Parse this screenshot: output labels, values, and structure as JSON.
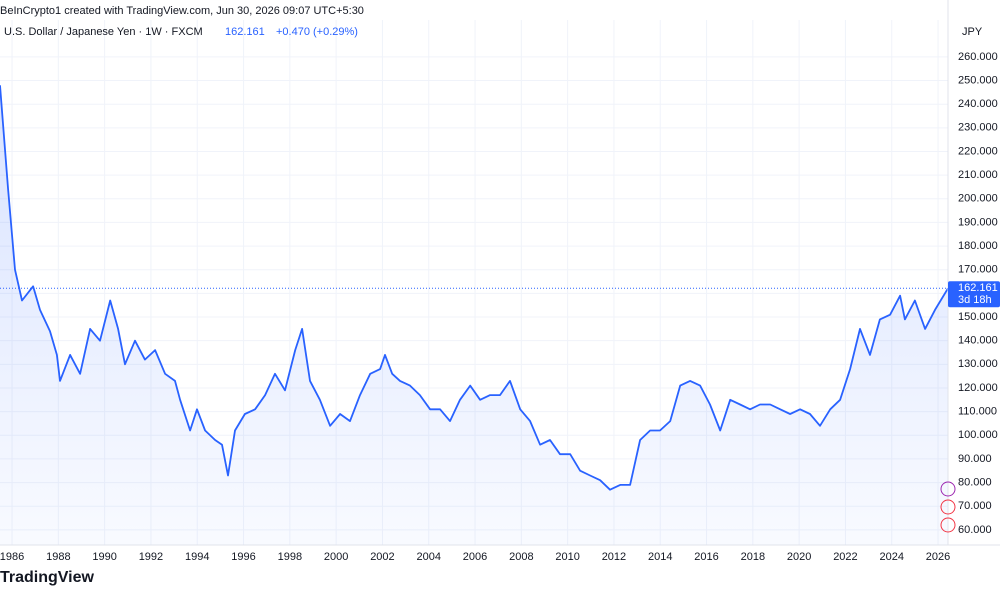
{
  "header": {
    "credit": "BeInCrypto1 created with TradingView.com, Jun 30, 2026 09:07 UTC+5:30",
    "symbol": "U.S. Dollar / Japanese Yen · 1W · FXCM",
    "change": "+0.470 (+0.29%)",
    "countdown": "3d 18h",
    "logo": "TradingView"
  },
  "chart_data": {
    "type": "line",
    "y_axis_label": "JPY",
    "color": "#2962ff",
    "grid": true,
    "xlim": [
      1985.48,
      2026.43
    ],
    "ylim": [
      53.6,
      275.6
    ],
    "xticks": [
      1986,
      1988,
      1990,
      1992,
      1994,
      1996,
      1998,
      2000,
      2002,
      2004,
      2006,
      2008,
      2010,
      2012,
      2014,
      2016,
      2018,
      2020,
      2022,
      2024,
      2026
    ],
    "yticks": [
      {
        "value": 60,
        "label": "60.000"
      },
      {
        "value": 70,
        "label": "70.000"
      },
      {
        "value": 80,
        "label": "80.000"
      },
      {
        "value": 90,
        "label": "90.000"
      },
      {
        "value": 100,
        "label": "100.000"
      },
      {
        "value": 110,
        "label": "110.000"
      },
      {
        "value": 120,
        "label": "120.000"
      },
      {
        "value": 130,
        "label": "130.000"
      },
      {
        "value": 140,
        "label": "140.000"
      },
      {
        "value": 150,
        "label": "150.000"
      },
      {
        "value": 160,
        "label": "160.000"
      },
      {
        "value": 170,
        "label": "170.000"
      },
      {
        "value": 180,
        "label": "180.000"
      },
      {
        "value": 190,
        "label": "190.000"
      },
      {
        "value": 200,
        "label": "200.000"
      },
      {
        "value": 210,
        "label": "210.000"
      },
      {
        "value": 220,
        "label": "220.000"
      },
      {
        "value": 230,
        "label": "230.000"
      },
      {
        "value": 240,
        "label": "240.000"
      },
      {
        "value": 250,
        "label": "250.000"
      },
      {
        "value": 260,
        "label": "260.000"
      }
    ],
    "x": [
      1985.48,
      1985.83,
      1986.13,
      1986.43,
      1986.91,
      1987.21,
      1987.64,
      1987.94,
      1988.07,
      1988.51,
      1988.94,
      1989.37,
      1989.8,
      1990.24,
      1990.58,
      1990.88,
      1991.31,
      1991.74,
      1992.18,
      1992.61,
      1993.04,
      1993.26,
      1993.69,
      1993.99,
      1994.34,
      1994.77,
      1995.07,
      1995.33,
      1995.63,
      1996.06,
      1996.5,
      1996.93,
      1997.36,
      1997.79,
      1998.23,
      1998.53,
      1998.87,
      1999.3,
      1999.74,
      2000.17,
      2000.6,
      2001.03,
      2001.47,
      2001.9,
      2002.11,
      2002.42,
      2002.76,
      2003.19,
      2003.62,
      2004.06,
      2004.49,
      2004.92,
      2005.35,
      2005.79,
      2006.22,
      2006.65,
      2007.08,
      2007.51,
      2007.95,
      2008.38,
      2008.81,
      2009.24,
      2009.67,
      2010.11,
      2010.54,
      2010.97,
      2011.4,
      2011.83,
      2012.27,
      2012.7,
      2013.13,
      2013.56,
      2013.99,
      2014.43,
      2014.86,
      2015.29,
      2015.72,
      2016.15,
      2016.59,
      2017.02,
      2017.45,
      2017.88,
      2018.31,
      2018.75,
      2019.18,
      2019.61,
      2020.04,
      2020.47,
      2020.9,
      2021.34,
      2021.77,
      2022.2,
      2022.63,
      2023.06,
      2023.49,
      2023.93,
      2024.36,
      2024.57,
      2025.0,
      2025.44,
      2025.87,
      2026.43
    ],
    "values": [
      248,
      204,
      170,
      157,
      163,
      153,
      144,
      134,
      123,
      134,
      126,
      145,
      140,
      157,
      145,
      130,
      140,
      132,
      136,
      126,
      123,
      115,
      102,
      111,
      102,
      98,
      96,
      83,
      102,
      109,
      111,
      117,
      126,
      119,
      136,
      145,
      123,
      115,
      104,
      109,
      106,
      117,
      126,
      128,
      134,
      126,
      123,
      121,
      117,
      111,
      111,
      106,
      115,
      121,
      115,
      117,
      117,
      123,
      111,
      106,
      96,
      98,
      92,
      92,
      85,
      83,
      81,
      77,
      79,
      79,
      98,
      102,
      102,
      106,
      121,
      123,
      121,
      113,
      102,
      115,
      113,
      111,
      113,
      113,
      111,
      109,
      111,
      109,
      104,
      111,
      115,
      128,
      145,
      134,
      149,
      151,
      159,
      149,
      157,
      145,
      153,
      162.161
    ]
  }
}
